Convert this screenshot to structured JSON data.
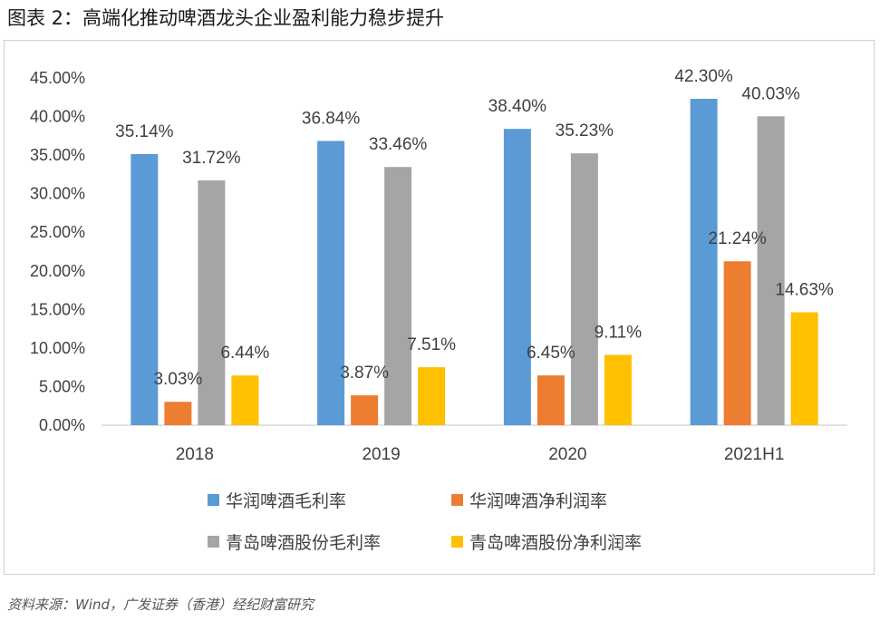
{
  "title": "图表 2：高端化推动啤酒龙头企业盈利能力稳步提升",
  "source": "资料来源：Wind，广发证券（香港）经纪财富研究",
  "chart_data": {
    "type": "bar",
    "categories": [
      "2018",
      "2019",
      "2020",
      "2021H1"
    ],
    "series": [
      {
        "name": "华润啤酒毛利率",
        "color": "#5B9BD5",
        "values": [
          35.14,
          36.84,
          38.4,
          42.3
        ],
        "labels": [
          "35.14%",
          "36.84%",
          "38.40%",
          "42.30%"
        ]
      },
      {
        "name": "华润啤酒净利润率",
        "color": "#ED7D31",
        "values": [
          3.03,
          3.87,
          6.45,
          21.24
        ],
        "labels": [
          "3.03%",
          "3.87%",
          "6.45%",
          "21.24%"
        ]
      },
      {
        "name": "青岛啤酒股份毛利率",
        "color": "#A5A5A5",
        "values": [
          31.72,
          33.46,
          35.23,
          40.03
        ],
        "labels": [
          "31.72%",
          "33.46%",
          "35.23%",
          "40.03%"
        ]
      },
      {
        "name": "青岛啤酒股份净利润率",
        "color": "#FFC000",
        "values": [
          6.44,
          7.51,
          9.11,
          14.63
        ],
        "labels": [
          "6.44%",
          "7.51%",
          "9.11%",
          "14.63%"
        ]
      }
    ],
    "yticks": [
      "0.00%",
      "5.00%",
      "10.00%",
      "15.00%",
      "20.00%",
      "25.00%",
      "30.00%",
      "35.00%",
      "40.00%",
      "45.00%"
    ],
    "ylim": [
      0,
      45
    ],
    "grid": false,
    "legend": "bottom"
  }
}
